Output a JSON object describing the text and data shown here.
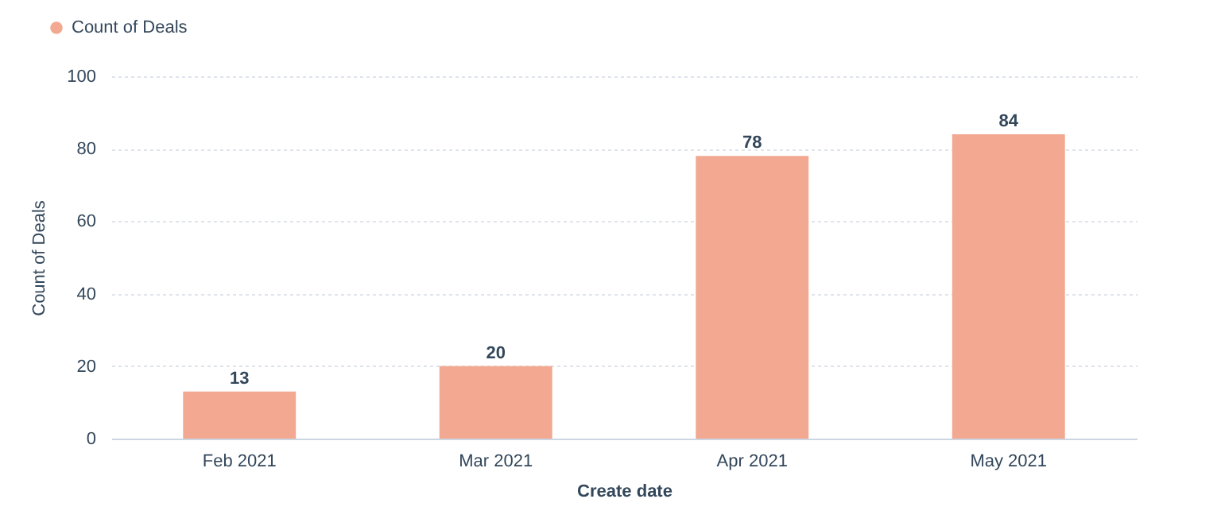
{
  "chart_data": {
    "type": "bar",
    "xlabel": "Create date",
    "ylabel": "Count of Deals",
    "categories": [
      "Feb 2021",
      "Mar 2021",
      "Apr 2021",
      "May 2021"
    ],
    "series": [
      {
        "name": "Count of Deals",
        "color": "#f2a891",
        "values": [
          13,
          20,
          78,
          84
        ]
      }
    ],
    "ylim": [
      0,
      100
    ],
    "yticks": [
      0,
      20,
      40,
      60,
      80,
      100
    ],
    "grid": "y",
    "legend": "top left",
    "data_labels": true
  }
}
